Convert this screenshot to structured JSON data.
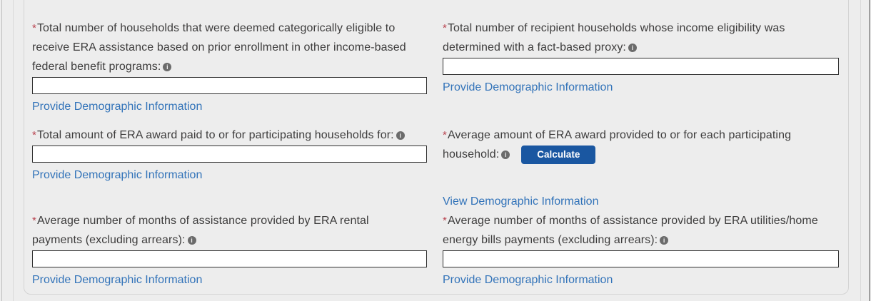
{
  "page": {
    "background_color": "#ededed",
    "container_border_color": "#d4d4d4",
    "label_color": "#3d3c3c",
    "required_marker_color": "#b8424e",
    "link_color": "#3273b9",
    "button_color": "#1a57a1",
    "input_border_color": "#303030"
  },
  "icons": {
    "info_glyph": "i"
  },
  "required_marker": "*",
  "fields": [
    {
      "id": "categorically-eligible-households",
      "label": "Total number of households that were deemed categorically eligible to\nreceive ERA assistance based on prior enrollment in other income-based\nfederal benefit programs:",
      "input_value": "",
      "link": "Provide Demographic Information"
    },
    {
      "id": "fact-based-proxy-households",
      "label": "Total number of recipient households whose income eligibility was\ndetermined with a fact-based proxy:",
      "input_value": "",
      "link": "Provide Demographic Information"
    },
    {
      "id": "total-era-award-paid",
      "label": "Total amount of ERA award paid to or for participating households for:",
      "input_value": "",
      "link": "Provide Demographic Information"
    },
    {
      "id": "average-era-award",
      "label": "Average amount of ERA award provided to or for each participating\nhousehold:",
      "button": "Calculate",
      "link": "View Demographic Information"
    },
    {
      "id": "avg-months-rental-payments",
      "label": "Average number of months of assistance provided by ERA rental\npayments (excluding arrears):",
      "input_value": "",
      "link": "Provide Demographic Information"
    },
    {
      "id": "avg-months-utilities-payments",
      "label": "Average number of months of assistance provided by ERA utilities/home\nenergy bills payments (excluding arrears):",
      "input_value": "",
      "link": "Provide Demographic Information"
    }
  ]
}
